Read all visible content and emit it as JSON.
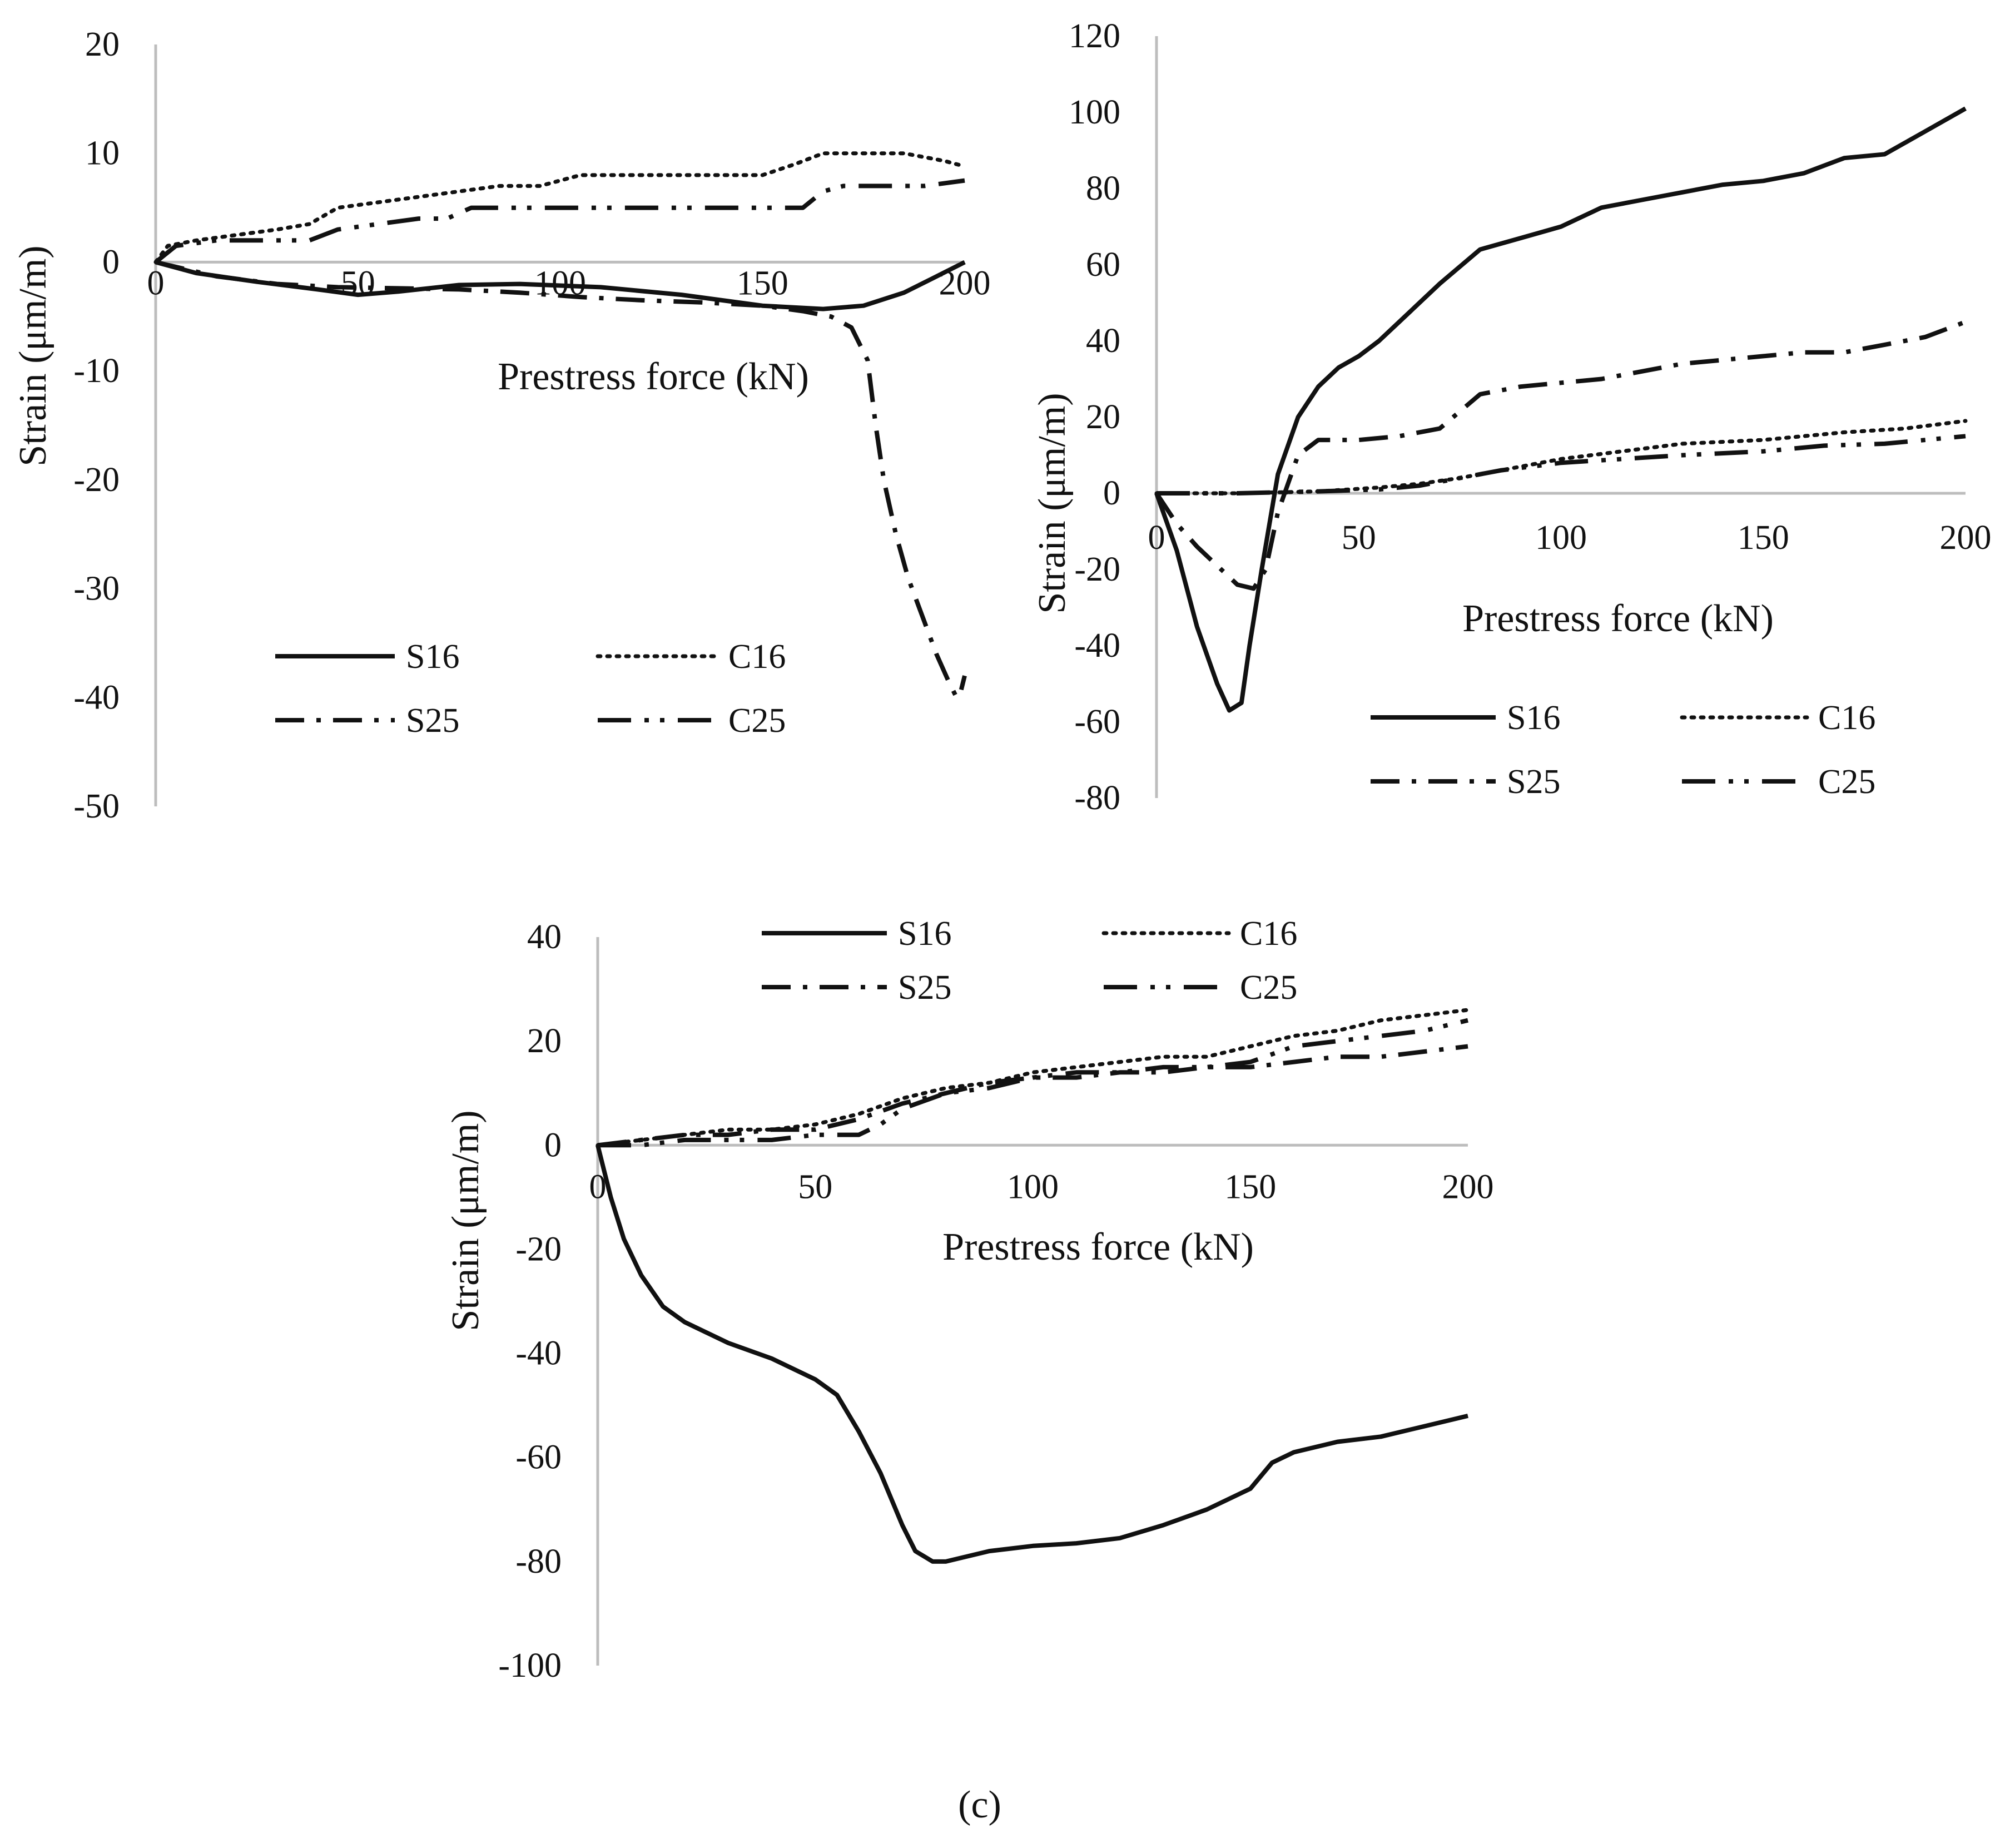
{
  "caption": "(c)",
  "line_color": "#111111",
  "axis_color": "#bdbdbd",
  "chart_data": [
    {
      "type": "line",
      "title": "",
      "xlabel": "Prestress force (kN)",
      "ylabel": "Strain (μm/m)",
      "xlim": [
        0,
        200
      ],
      "ylim": [
        -50,
        20
      ],
      "xticks": [
        0,
        50,
        100,
        150,
        200
      ],
      "yticks": [
        20,
        10,
        0,
        -10,
        -20,
        -30,
        -40,
        -50
      ],
      "grid": false,
      "legend": "bottom",
      "series": [
        {
          "name": "S16",
          "style": "solid",
          "x": [
            0,
            10,
            25,
            40,
            50,
            60,
            75,
            90,
            110,
            130,
            150,
            165,
            175,
            185,
            192,
            200
          ],
          "y": [
            0,
            -1,
            -1.8,
            -2.5,
            -3,
            -2.7,
            -2.1,
            -2,
            -2.3,
            -3,
            -4,
            -4.3,
            -4,
            -2.8,
            -1.5,
            0
          ]
        },
        {
          "name": "C16",
          "style": "dotted",
          "x": [
            0,
            3,
            10,
            20,
            30,
            38,
            45,
            55,
            65,
            75,
            85,
            95,
            105,
            120,
            135,
            150,
            158,
            165,
            175,
            185,
            195,
            200
          ],
          "y": [
            0,
            1.5,
            2,
            2.5,
            3,
            3.5,
            5,
            5.5,
            6,
            6.5,
            7,
            7,
            8,
            8,
            8,
            8,
            9,
            10,
            10,
            10,
            9.3,
            8.8
          ]
        },
        {
          "name": "S25",
          "style": "dashdot",
          "x": [
            0,
            15,
            30,
            45,
            60,
            75,
            90,
            105,
            120,
            135,
            150,
            160,
            167,
            172,
            176,
            178,
            180,
            183,
            186,
            190,
            193,
            196,
            198,
            199,
            200
          ],
          "y": [
            0,
            -1.3,
            -2,
            -2.3,
            -2.4,
            -2.5,
            -2.8,
            -3.2,
            -3.5,
            -3.7,
            -4,
            -4.5,
            -5,
            -6,
            -9,
            -15,
            -20,
            -25,
            -29,
            -33,
            -36,
            -38.5,
            -40,
            -39.5,
            -38
          ]
        },
        {
          "name": "C25",
          "style": "dashdotdot",
          "x": [
            0,
            5,
            15,
            25,
            32,
            38,
            45,
            55,
            65,
            72,
            78,
            90,
            100,
            115,
            130,
            145,
            160,
            165,
            170,
            180,
            190,
            200
          ],
          "y": [
            0,
            1.5,
            2,
            2,
            2,
            2,
            3,
            3.5,
            4,
            4,
            5,
            5,
            5,
            5,
            5,
            5,
            5,
            6.5,
            7,
            7,
            7,
            7.5
          ]
        }
      ]
    },
    {
      "type": "line",
      "title": "",
      "xlabel": "Prestress force (kN)",
      "ylabel": "Strain (μm/m)",
      "xlim": [
        0,
        200
      ],
      "ylim": [
        -80,
        120
      ],
      "xticks": [
        0,
        50,
        100,
        150,
        200
      ],
      "yticks": [
        120,
        100,
        80,
        60,
        40,
        20,
        0,
        -20,
        -40,
        -60,
        -80
      ],
      "grid": false,
      "legend": "bottom",
      "series": [
        {
          "name": "S16",
          "style": "solid",
          "x": [
            0,
            5,
            10,
            15,
            18,
            21,
            23,
            26,
            30,
            35,
            40,
            45,
            50,
            55,
            60,
            70,
            80,
            90,
            100,
            110,
            120,
            130,
            140,
            150,
            160,
            170,
            180,
            190,
            200
          ],
          "y": [
            0,
            -15,
            -35,
            -50,
            -57,
            -55,
            -40,
            -20,
            5,
            20,
            28,
            33,
            36,
            40,
            45,
            55,
            64,
            67,
            70,
            75,
            77,
            79,
            81,
            82,
            84,
            88,
            89,
            95,
            101
          ]
        },
        {
          "name": "C16",
          "style": "dotted",
          "x": [
            0,
            20,
            40,
            55,
            65,
            75,
            85,
            100,
            115,
            130,
            150,
            170,
            185,
            200
          ],
          "y": [
            0,
            0,
            0.5,
            1.5,
            2.5,
            4,
            6,
            9,
            11,
            13,
            14,
            16,
            17,
            19
          ]
        },
        {
          "name": "S25",
          "style": "dashdot",
          "x": [
            0,
            5,
            10,
            15,
            20,
            24,
            27,
            30,
            35,
            40,
            50,
            60,
            70,
            80,
            90,
            100,
            110,
            120,
            130,
            140,
            150,
            160,
            170,
            180,
            190,
            200
          ],
          "y": [
            0,
            -8,
            -14,
            -19,
            -24,
            -25,
            -20,
            -5,
            10,
            14,
            14,
            15,
            17,
            26,
            28,
            29,
            30,
            32,
            34,
            35,
            36,
            37,
            37,
            39,
            41,
            45
          ]
        },
        {
          "name": "C25",
          "style": "dashdotdot",
          "x": [
            0,
            20,
            40,
            55,
            65,
            75,
            85,
            100,
            115,
            130,
            150,
            165,
            180,
            200
          ],
          "y": [
            0,
            0,
            0.5,
            1,
            2,
            4,
            6,
            8,
            9,
            10,
            11,
            12.5,
            13,
            15
          ]
        }
      ]
    },
    {
      "type": "line",
      "title": "",
      "xlabel": "Prestress force (kN)",
      "ylabel": "Strain (μm/m)",
      "xlim": [
        0,
        200
      ],
      "ylim": [
        -100,
        40
      ],
      "xticks": [
        0,
        50,
        100,
        150,
        200
      ],
      "yticks": [
        40,
        20,
        0,
        -20,
        -40,
        -60,
        -80,
        -100
      ],
      "grid": false,
      "legend": "top",
      "series": [
        {
          "name": "S16",
          "style": "solid",
          "x": [
            0,
            3,
            6,
            10,
            15,
            20,
            30,
            40,
            50,
            55,
            60,
            65,
            70,
            73,
            77,
            80,
            85,
            90,
            95,
            100,
            110,
            120,
            130,
            140,
            150,
            155,
            160,
            170,
            180,
            190,
            200
          ],
          "y": [
            0,
            -10,
            -18,
            -25,
            -31,
            -34,
            -38,
            -41,
            -45,
            -48,
            -55,
            -63,
            -73,
            -78,
            -80,
            -80,
            -79,
            -78,
            -77.5,
            -77,
            -76.5,
            -75.5,
            -73,
            -70,
            -66,
            -61,
            -59,
            -57,
            -56,
            -54,
            -52
          ]
        },
        {
          "name": "C16",
          "style": "dotted",
          "x": [
            0,
            10,
            20,
            30,
            40,
            50,
            60,
            70,
            80,
            90,
            100,
            110,
            120,
            130,
            140,
            150,
            160,
            170,
            180,
            190,
            200
          ],
          "y": [
            0,
            1,
            2,
            3,
            3,
            4,
            6,
            9,
            11,
            12,
            14,
            15,
            16,
            17,
            17,
            19,
            21,
            22,
            24,
            25,
            26
          ]
        },
        {
          "name": "S25",
          "style": "dashdot",
          "x": [
            0,
            10,
            20,
            30,
            40,
            50,
            60,
            70,
            80,
            90,
            100,
            110,
            120,
            130,
            140,
            150,
            160,
            170,
            180,
            190,
            200
          ],
          "y": [
            0,
            1,
            2,
            2,
            3,
            3,
            5,
            8,
            10,
            12,
            13,
            13,
            14,
            14,
            15,
            15,
            16,
            17,
            17,
            18,
            19
          ]
        },
        {
          "name": "C25",
          "style": "dashdotdot",
          "x": [
            0,
            10,
            20,
            30,
            40,
            50,
            60,
            65,
            70,
            80,
            90,
            100,
            110,
            120,
            130,
            140,
            150,
            160,
            170,
            180,
            190,
            200
          ],
          "y": [
            0,
            0,
            1,
            1,
            1,
            2,
            2,
            4,
            7,
            10,
            11,
            13,
            14,
            14,
            15,
            15,
            16,
            19,
            20,
            21,
            22,
            24
          ]
        }
      ]
    }
  ]
}
